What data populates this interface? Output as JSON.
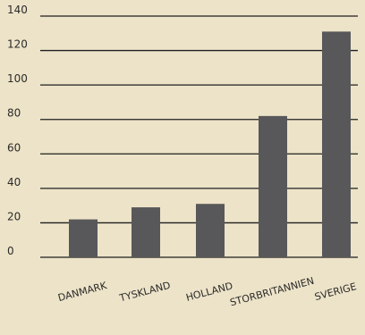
{
  "colors": {
    "background": "#ede3c8",
    "bar": "#58585a",
    "gridline": "#1f1f1f",
    "text": "#2a2a2a"
  },
  "chart_data": {
    "type": "bar",
    "title": "",
    "xlabel": "",
    "ylabel": "",
    "categories": [
      "DANMARK",
      "TYSKLAND",
      "HOLLAND",
      "STORBRITANNIEN",
      "SVERIGE"
    ],
    "values": [
      22,
      29,
      31,
      82,
      131
    ],
    "ylim": [
      0,
      140
    ],
    "yticks": [
      0,
      20,
      40,
      60,
      80,
      100,
      120,
      140
    ],
    "yticks_labels": [
      "0",
      "20",
      "40",
      "60",
      "80",
      "100",
      "120",
      "140"
    ],
    "grid": true,
    "legend": "none"
  }
}
